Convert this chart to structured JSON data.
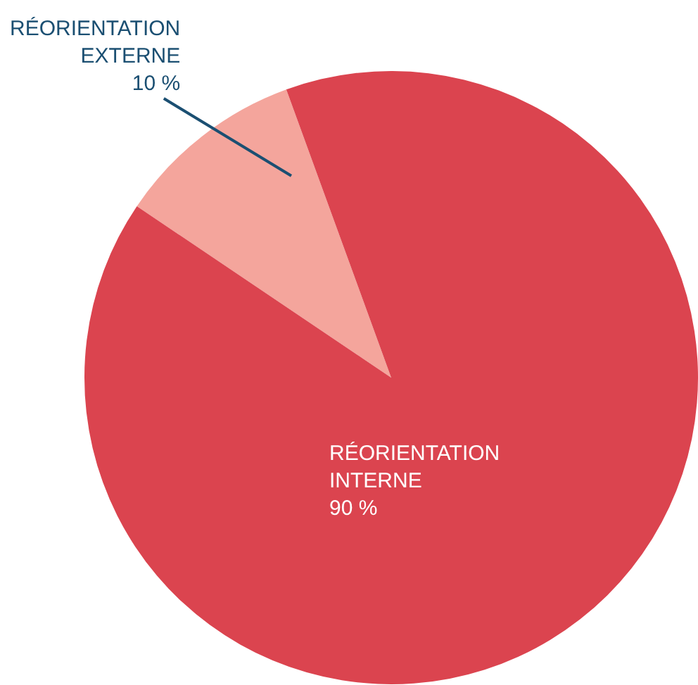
{
  "chart_data": {
    "type": "pie",
    "categories": [
      "RÉORIENTATION EXTERNE",
      "RÉORIENTATION INTERNE"
    ],
    "values": [
      10,
      90
    ],
    "value_labels": [
      "10 %",
      "90 %"
    ],
    "colors": [
      "#f4a59c",
      "#db444f"
    ],
    "legend": false
  }
}
